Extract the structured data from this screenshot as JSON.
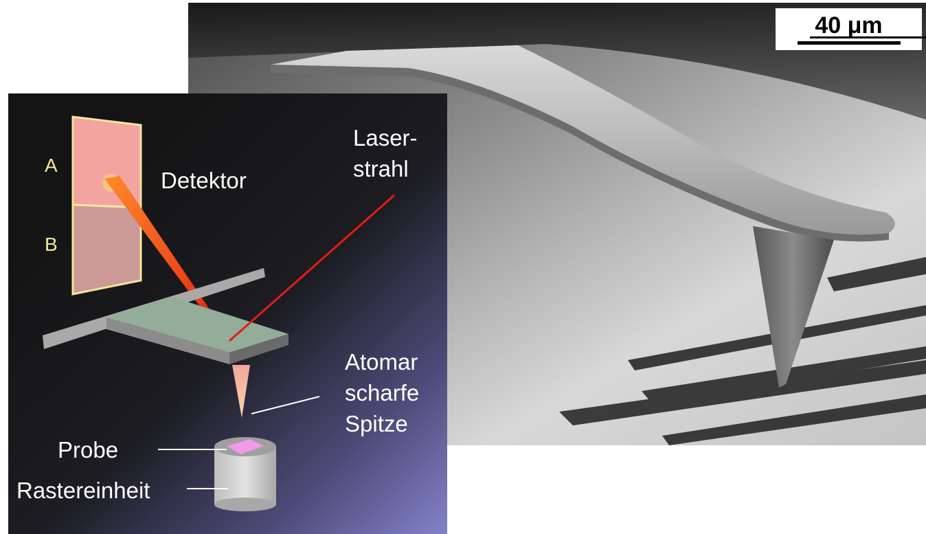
{
  "scale_bar": {
    "label": "40 μm"
  },
  "diagram": {
    "photodiode_a": "A",
    "photodiode_b": "B",
    "detector": "Detektor",
    "laser_line1": "Laser-",
    "laser_line2": "strahl",
    "tip_line1": "Atomar",
    "tip_line2": "scharfe",
    "tip_line3": "Spitze",
    "sample": "Probe",
    "scanner": "Rastereinheit"
  },
  "colors": {
    "laser": "#e41d14",
    "detector_segment_a": "#f3a3a0",
    "detector_segment_b": "#cc9a96",
    "detector_frame": "#f2e79a",
    "cantilever_top": "#93ad98",
    "sample": "#f19be8"
  }
}
